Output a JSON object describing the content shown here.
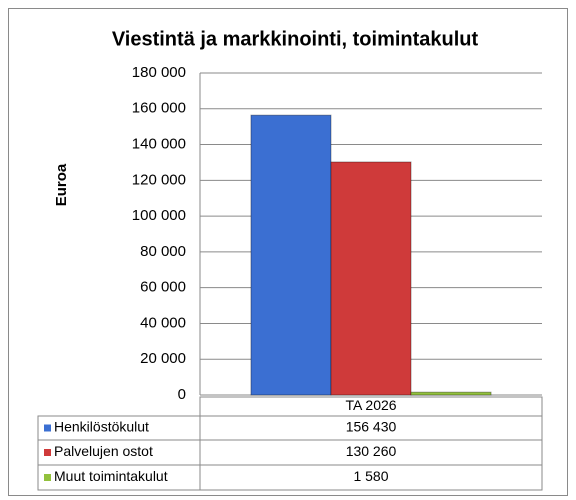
{
  "chart_data": {
    "type": "bar",
    "title": "Viestintä ja markkinointi, toimintakulut",
    "y_label": "Euroa",
    "categories": [
      "TA 2026"
    ],
    "series": [
      {
        "name": "Henkilöstökulut",
        "color": "#3b6fd2",
        "values": [
          156430
        ],
        "value_labels": [
          "156 430"
        ]
      },
      {
        "name": "Palvelujen ostot",
        "color": "#cf3a3a",
        "values": [
          130260
        ],
        "value_labels": [
          "130 260"
        ]
      },
      {
        "name": "Muut toimintakulut",
        "color": "#92c13c",
        "values": [
          1580
        ],
        "value_labels": [
          "1 580"
        ]
      }
    ],
    "ylim": [
      0,
      180000
    ],
    "yticks": [
      0,
      {
        "value": 20000,
        "label": "20 000"
      },
      {
        "value": 40000,
        "label": "40 000"
      },
      {
        "value": 60000,
        "label": "60 000"
      },
      {
        "value": 80000,
        "label": "80 000"
      },
      {
        "value": 100000,
        "label": "100 000"
      },
      {
        "value": 120000,
        "label": "120 000"
      },
      {
        "value": 140000,
        "label": "140 000"
      },
      {
        "value": 160000,
        "label": "160 000"
      },
      {
        "value": 180000,
        "label": "180 000"
      }
    ],
    "grid": true
  }
}
